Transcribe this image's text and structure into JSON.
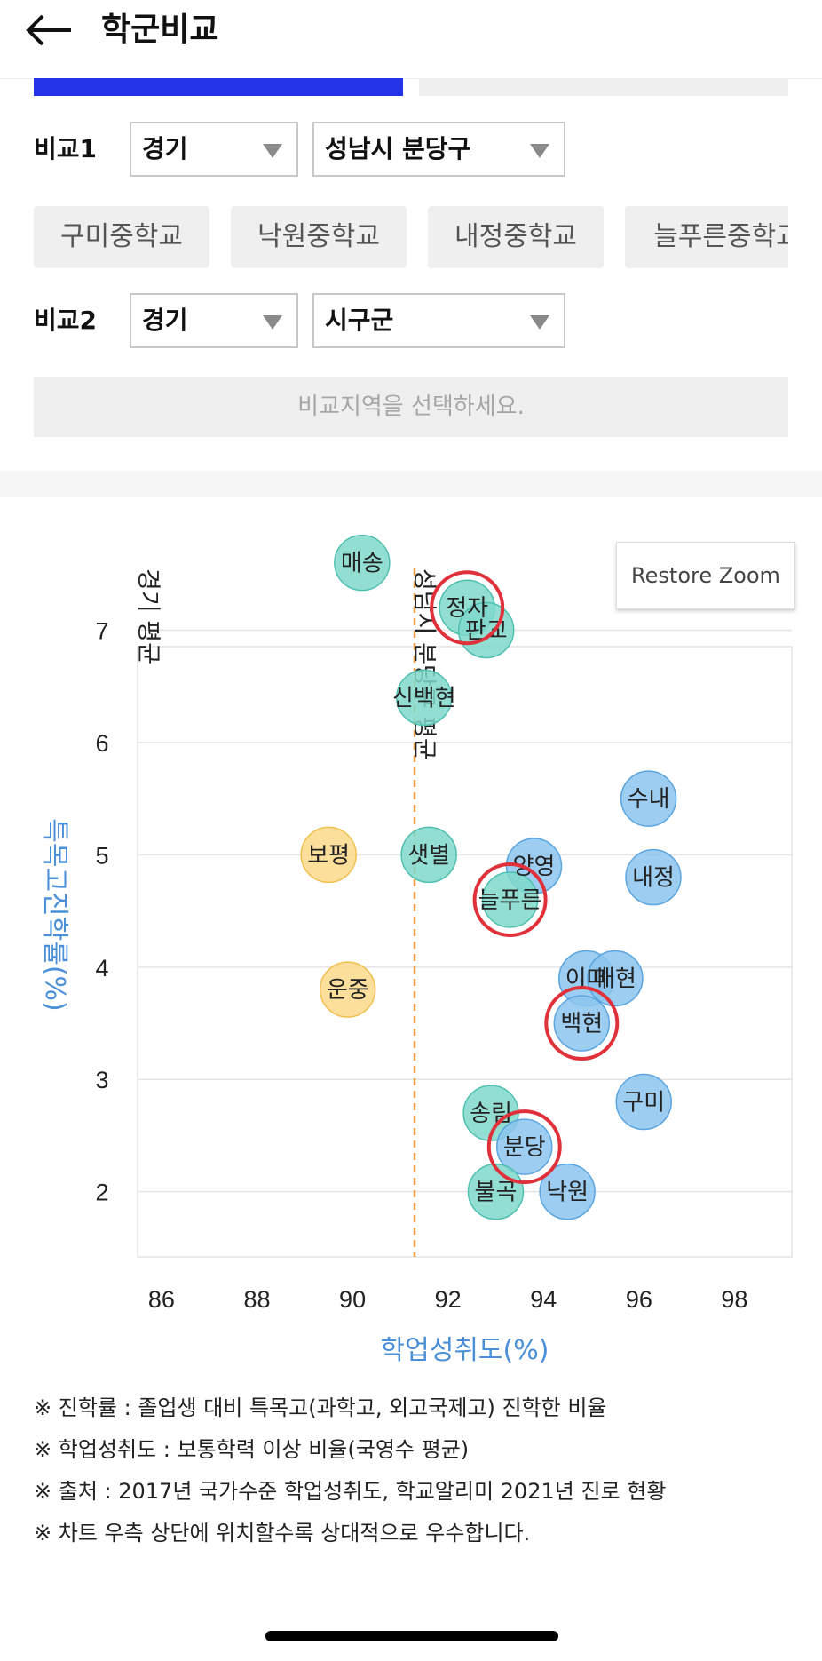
{
  "header": {
    "title": "학군비교",
    "back_icon": "arrow-left-icon"
  },
  "compare1": {
    "label": "비교1",
    "province": "경기",
    "district": "성남시 분당구"
  },
  "schools": [
    "구미중학교",
    "낙원중학교",
    "내정중학교",
    "늘푸른중학교"
  ],
  "compare2": {
    "label": "비교2",
    "province": "경기",
    "district": "시구군",
    "placeholder": "비교지역을 선택하세요."
  },
  "chart": {
    "restore_zoom": "Restore Zoom"
  },
  "chart_data": {
    "type": "scatter",
    "xlabel": "학업성취도(%)",
    "ylabel": "특목고진학률(%)",
    "xlim": [
      85.5,
      99.2
    ],
    "ylim": [
      1.42,
      7.55
    ],
    "x_ticks": [
      86,
      88,
      90,
      92,
      94,
      96,
      98
    ],
    "y_ticks": [
      2,
      3,
      4,
      5,
      6,
      7
    ],
    "grid": true,
    "reference_lines": [
      {
        "label": "경기 평균",
        "x": 85.5
      },
      {
        "label": "성남시 분당구 평균",
        "x": 91.3
      }
    ],
    "colors": {
      "blue": "#8cc4ef",
      "teal": "#7fd8cb",
      "yellow": "#fbd98a",
      "highlight": "#e0313b",
      "axis_title": "#4a8fd8",
      "ref_line": "#f0a040"
    },
    "points": [
      {
        "label": "매송",
        "x": 90.2,
        "y": 7.6,
        "group": "teal"
      },
      {
        "label": "정자",
        "x": 92.4,
        "y": 7.2,
        "group": "teal",
        "highlight": true
      },
      {
        "label": "판교",
        "x": 92.8,
        "y": 7.0,
        "group": "teal"
      },
      {
        "label": "신백현",
        "x": 91.5,
        "y": 6.4,
        "group": "teal"
      },
      {
        "label": "수내",
        "x": 96.2,
        "y": 5.5,
        "group": "blue"
      },
      {
        "label": "보평",
        "x": 89.5,
        "y": 5.0,
        "group": "yellow"
      },
      {
        "label": "샛별",
        "x": 91.6,
        "y": 5.0,
        "group": "teal"
      },
      {
        "label": "양영",
        "x": 93.8,
        "y": 4.9,
        "group": "blue"
      },
      {
        "label": "내정",
        "x": 96.3,
        "y": 4.8,
        "group": "blue"
      },
      {
        "label": "늘푸른",
        "x": 93.3,
        "y": 4.6,
        "group": "teal",
        "highlight": true
      },
      {
        "label": "이매",
        "x": 94.9,
        "y": 3.9,
        "group": "blue"
      },
      {
        "label": "매현",
        "x": 95.5,
        "y": 3.9,
        "group": "blue"
      },
      {
        "label": "운중",
        "x": 89.9,
        "y": 3.8,
        "group": "yellow"
      },
      {
        "label": "백현",
        "x": 94.8,
        "y": 3.5,
        "group": "blue",
        "highlight": true
      },
      {
        "label": "구미",
        "x": 96.1,
        "y": 2.8,
        "group": "blue"
      },
      {
        "label": "송림",
        "x": 92.9,
        "y": 2.7,
        "group": "teal"
      },
      {
        "label": "분당",
        "x": 93.6,
        "y": 2.4,
        "group": "blue",
        "highlight": true
      },
      {
        "label": "불곡",
        "x": 93.0,
        "y": 2.0,
        "group": "teal"
      },
      {
        "label": "낙원",
        "x": 94.5,
        "y": 2.0,
        "group": "blue"
      }
    ]
  },
  "notes": [
    "※ 진학률 : 졸업생 대비 특목고(과학고, 외고국제고) 진학한 비율",
    "※ 학업성취도 : 보통학력 이상 비율(국영수 평균)",
    "※ 출처 : 2017년 국가수준 학업성취도, 학교알리미 2021년 진로 현황",
    "※ 차트 우측 상단에 위치할수록 상대적으로 우수합니다."
  ]
}
